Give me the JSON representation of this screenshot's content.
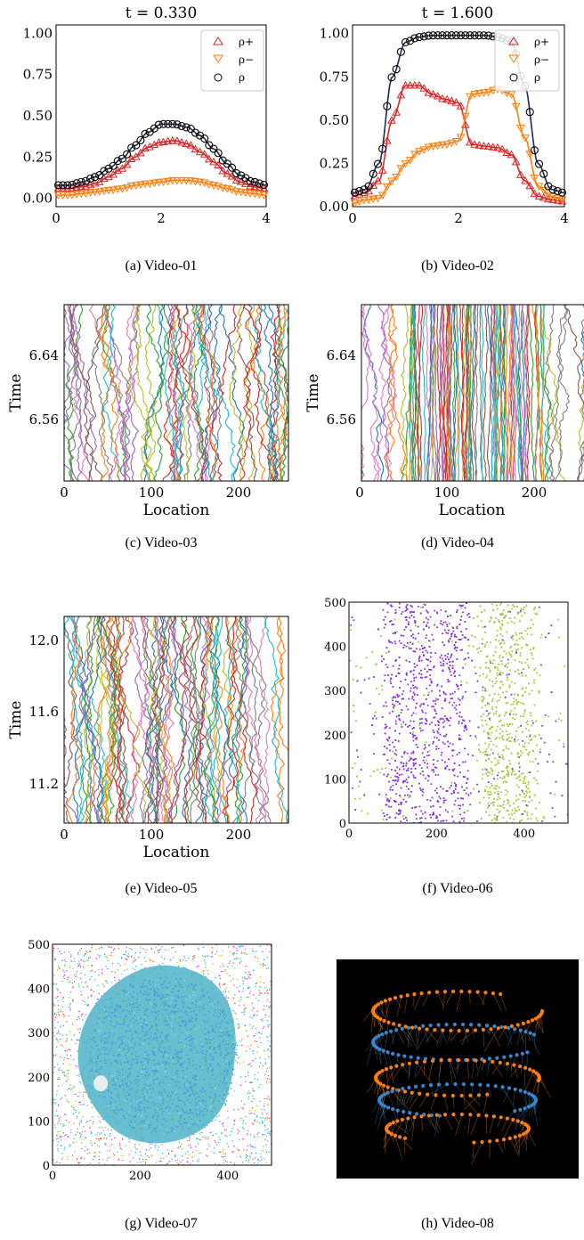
{
  "panels": {
    "a": {
      "title": "t = 0.330",
      "caption": "(a) Video-01",
      "xticks": [
        "0",
        "2",
        "4"
      ],
      "yticks": [
        "0.00",
        "0.25",
        "0.50",
        "0.75",
        "1.00"
      ],
      "legend": [
        "ρ+",
        "ρ−",
        "ρ"
      ]
    },
    "b": {
      "title": "t = 1.600",
      "caption": "(b) Video-02",
      "xticks": [
        "0",
        "2",
        "4"
      ],
      "yticks": [
        "0.00",
        "0.25",
        "0.50",
        "0.75",
        "1.00"
      ],
      "legend": [
        "ρ+",
        "ρ−",
        "ρ"
      ]
    },
    "c": {
      "caption": "(c) Video-03",
      "xlabel": "Location",
      "ylabel": "Time",
      "xticks": [
        "0",
        "100",
        "200"
      ],
      "yticks": [
        "6.56",
        "6.64"
      ]
    },
    "d": {
      "caption": "(d) Video-04",
      "xlabel": "Location",
      "ylabel": "Time",
      "xticks": [
        "0",
        "100",
        "200"
      ],
      "yticks": [
        "6.56",
        "6.64"
      ]
    },
    "e": {
      "caption": "(e) Video-05",
      "xlabel": "Location",
      "ylabel": "Time",
      "xticks": [
        "0",
        "100",
        "200"
      ],
      "yticks": [
        "11.2",
        "11.6",
        "12.0"
      ]
    },
    "f": {
      "caption": "(f) Video-06",
      "xticks": [
        "0",
        "200",
        "400"
      ],
      "yticks": [
        "0",
        "100",
        "200",
        "300",
        "400",
        "500"
      ]
    },
    "g": {
      "caption": "(g) Video-07",
      "xticks": [
        "0",
        "200",
        "400"
      ],
      "yticks": [
        "0",
        "100",
        "200",
        "300",
        "400",
        "500"
      ]
    },
    "h": {
      "caption": "(h) Video-08"
    }
  },
  "colors": {
    "rho_plus": "#d62728",
    "rho_minus": "#ff7f0e",
    "rho": "#000000",
    "rho_line": "#1f2b4d",
    "purple": "#8a2be2",
    "green": "#9acd32",
    "blue3d": "#3a86c8",
    "orange3d": "#ff7f0e"
  },
  "chart_data": [
    {
      "id": "a",
      "type": "line",
      "title": "t = 0.330",
      "xlim": [
        0,
        4
      ],
      "ylim": [
        -0.05,
        1.05
      ],
      "x": [
        0,
        0.25,
        0.5,
        0.75,
        1,
        1.25,
        1.5,
        1.75,
        2,
        2.25,
        2.5,
        2.75,
        3,
        3.25,
        3.5,
        3.75,
        4
      ],
      "series": [
        {
          "name": "ρ+",
          "marker": "triangle-up",
          "values": [
            0.06,
            0.06,
            0.07,
            0.09,
            0.13,
            0.18,
            0.25,
            0.31,
            0.34,
            0.35,
            0.33,
            0.28,
            0.22,
            0.15,
            0.1,
            0.07,
            0.06
          ]
        },
        {
          "name": "ρ−",
          "marker": "triangle-down",
          "values": [
            0.02,
            0.02,
            0.03,
            0.04,
            0.05,
            0.06,
            0.08,
            0.09,
            0.1,
            0.11,
            0.11,
            0.1,
            0.08,
            0.06,
            0.04,
            0.03,
            0.02
          ]
        },
        {
          "name": "ρ",
          "marker": "circle",
          "values": [
            0.08,
            0.08,
            0.1,
            0.13,
            0.18,
            0.24,
            0.32,
            0.4,
            0.45,
            0.45,
            0.43,
            0.38,
            0.3,
            0.21,
            0.14,
            0.1,
            0.08
          ]
        }
      ]
    },
    {
      "id": "b",
      "type": "line",
      "title": "t = 1.600",
      "xlim": [
        0,
        4
      ],
      "ylim": [
        0,
        1.05
      ],
      "x": [
        0,
        0.25,
        0.5,
        0.75,
        1,
        1.25,
        1.5,
        1.75,
        2,
        2.25,
        2.5,
        2.75,
        3,
        3.25,
        3.5,
        3.75,
        4
      ],
      "series": [
        {
          "name": "ρ+",
          "marker": "triangle-up",
          "values": [
            0.06,
            0.08,
            0.15,
            0.5,
            0.7,
            0.7,
            0.65,
            0.62,
            0.6,
            0.36,
            0.35,
            0.34,
            0.3,
            0.15,
            0.06,
            0.04,
            0.03
          ]
        },
        {
          "name": "ρ−",
          "marker": "triangle-down",
          "values": [
            0.02,
            0.04,
            0.05,
            0.15,
            0.25,
            0.32,
            0.35,
            0.36,
            0.38,
            0.65,
            0.66,
            0.68,
            0.65,
            0.4,
            0.12,
            0.06,
            0.04
          ]
        },
        {
          "name": "ρ",
          "marker": "circle",
          "values": [
            0.08,
            0.1,
            0.25,
            0.75,
            0.95,
            0.98,
            0.99,
            0.99,
            0.99,
            0.99,
            0.99,
            0.98,
            0.95,
            0.7,
            0.25,
            0.1,
            0.08
          ]
        }
      ]
    }
  ]
}
